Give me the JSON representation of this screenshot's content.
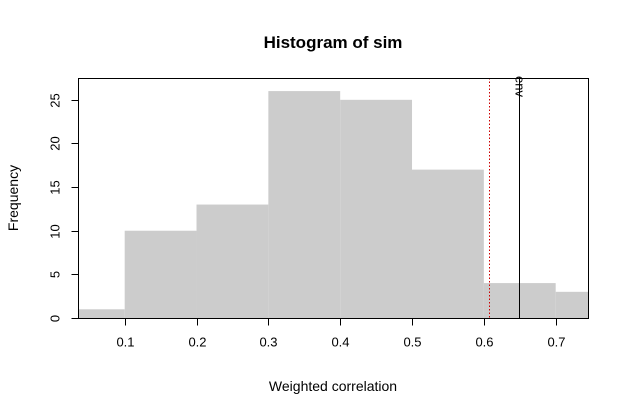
{
  "chart_data": {
    "type": "bar",
    "title": "Histogram of sim",
    "xlabel": "Weighted correlation",
    "ylabel": "Frequency",
    "bins": [
      {
        "start": 0.0,
        "end": 0.1,
        "count": 1
      },
      {
        "start": 0.1,
        "end": 0.2,
        "count": 10
      },
      {
        "start": 0.2,
        "end": 0.3,
        "count": 13
      },
      {
        "start": 0.3,
        "end": 0.4,
        "count": 26
      },
      {
        "start": 0.4,
        "end": 0.5,
        "count": 25
      },
      {
        "start": 0.5,
        "end": 0.6,
        "count": 17
      },
      {
        "start": 0.6,
        "end": 0.7,
        "count": 4
      },
      {
        "start": 0.7,
        "end": 0.8,
        "count": 3
      }
    ],
    "xlim": [
      0.035,
      0.745
    ],
    "ylim": [
      0,
      27.5
    ],
    "xticks": [
      "0.1",
      "0.2",
      "0.3",
      "0.4",
      "0.5",
      "0.6",
      "0.7"
    ],
    "yticks": [
      "0",
      "5",
      "10",
      "15",
      "20",
      "25"
    ],
    "bar_color": "#cccccc",
    "vlines": [
      {
        "x": 0.607,
        "color": "#cc0000",
        "style": "dotted"
      },
      {
        "x": 0.649,
        "color": "#000000",
        "style": "solid",
        "label": "env"
      }
    ],
    "grid": false,
    "legend": "none"
  }
}
